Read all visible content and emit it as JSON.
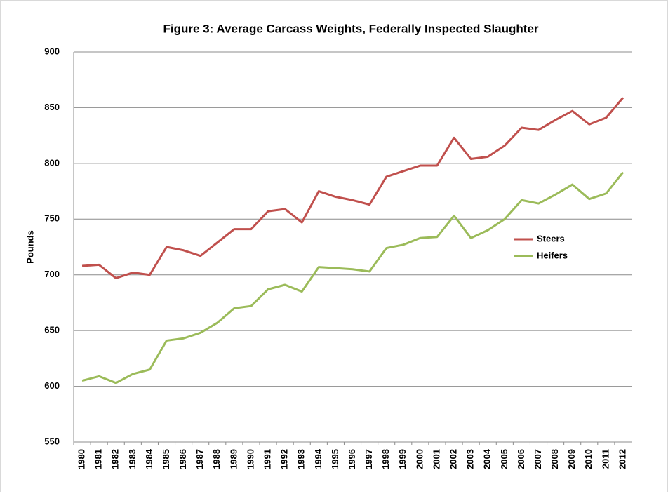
{
  "chart_data": {
    "type": "line",
    "title": "Figure 3: Average Carcass Weights, Federally Inspected Slaughter",
    "y_label": "Pounds",
    "categories": [
      "1980",
      "1981",
      "1982",
      "1983",
      "1984",
      "1985",
      "1986",
      "1987",
      "1988",
      "1989",
      "1990",
      "1991",
      "1992",
      "1993",
      "1994",
      "1995",
      "1996",
      "1997",
      "1998",
      "1999",
      "2000",
      "2001",
      "2002",
      "2003",
      "2004",
      "2005",
      "2006",
      "2007",
      "2008",
      "2009",
      "2010",
      "2011",
      "2012"
    ],
    "series": [
      {
        "name": "Steers",
        "color": "#c0504d",
        "values": [
          708,
          709,
          697,
          702,
          700,
          725,
          722,
          717,
          729,
          741,
          741,
          757,
          759,
          747,
          775,
          770,
          767,
          763,
          788,
          793,
          798,
          798,
          823,
          804,
          806,
          816,
          832,
          830,
          839,
          847,
          835,
          841,
          859
        ]
      },
      {
        "name": "Heifers",
        "color": "#9bbb59",
        "values": [
          605,
          609,
          603,
          611,
          615,
          641,
          643,
          648,
          657,
          670,
          672,
          687,
          691,
          685,
          707,
          706,
          705,
          703,
          724,
          727,
          733,
          734,
          753,
          733,
          740,
          750,
          767,
          764,
          772,
          781,
          768,
          773,
          792
        ]
      }
    ],
    "ylim": [
      550,
      900
    ],
    "yticks": [
      550,
      600,
      650,
      700,
      750,
      800,
      850,
      900
    ],
    "grid": true,
    "legend": "right"
  }
}
